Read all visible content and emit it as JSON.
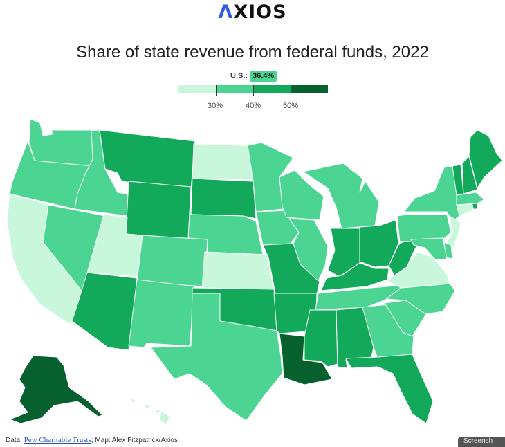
{
  "brand": {
    "logo_text": "XIOS",
    "logo_mark": "Λ"
  },
  "title": "Share of state revenue from federal funds, 2022",
  "legend": {
    "us_label": "U.S.:",
    "us_value": "36.4%",
    "ticks": [
      "30%",
      "40%",
      "50%"
    ],
    "bins": [
      {
        "range": "<30%",
        "color": "#c9f7dc"
      },
      {
        "range": "30-40%",
        "color": "#4cd492"
      },
      {
        "range": "40-50%",
        "color": "#12a95a"
      },
      {
        "range": ">50%",
        "color": "#07612f"
      }
    ]
  },
  "chart_data": {
    "type": "choropleth",
    "title": "Share of state revenue from federal funds, 2022",
    "us_average": 36.4,
    "bins": [
      "<30%",
      "30-40%",
      "40-50%",
      ">50%"
    ],
    "states": {
      "WA": "30-40%",
      "OR": "30-40%",
      "CA": "<30%",
      "NV": "30-40%",
      "ID": "30-40%",
      "MT": "40-50%",
      "WY": "40-50%",
      "UT": "<30%",
      "AZ": "40-50%",
      "CO": "30-40%",
      "NM": "30-40%",
      "ND": "<30%",
      "SD": "40-50%",
      "NE": "30-40%",
      "KS": "<30%",
      "OK": "40-50%",
      "TX": "30-40%",
      "MN": "30-40%",
      "IA": "30-40%",
      "MO": "40-50%",
      "AR": "40-50%",
      "LA": ">50%",
      "WI": "30-40%",
      "IL": "30-40%",
      "MI": "30-40%",
      "IN": "40-50%",
      "OH": "40-50%",
      "KY": "40-50%",
      "TN": "30-40%",
      "MS": "40-50%",
      "AL": "40-50%",
      "GA": "30-40%",
      "FL": "40-50%",
      "SC": "30-40%",
      "NC": "30-40%",
      "VA": "<30%",
      "WV": "40-50%",
      "PA": "30-40%",
      "NY": "30-40%",
      "NJ": "<30%",
      "DE": "30-40%",
      "MD": "30-40%",
      "CT": "<30%",
      "RI": "40-50%",
      "MA": "30-40%",
      "VT": "40-50%",
      "NH": "40-50%",
      "ME": "40-50%",
      "AK": ">50%",
      "HI": "<30%"
    }
  },
  "footer": {
    "data_prefix": "Data: ",
    "source_link": "Pew Charitable Trusts",
    "credit": "; Map: Alex Fitzpatrick/Axios",
    "corner_button": "Screensh"
  }
}
